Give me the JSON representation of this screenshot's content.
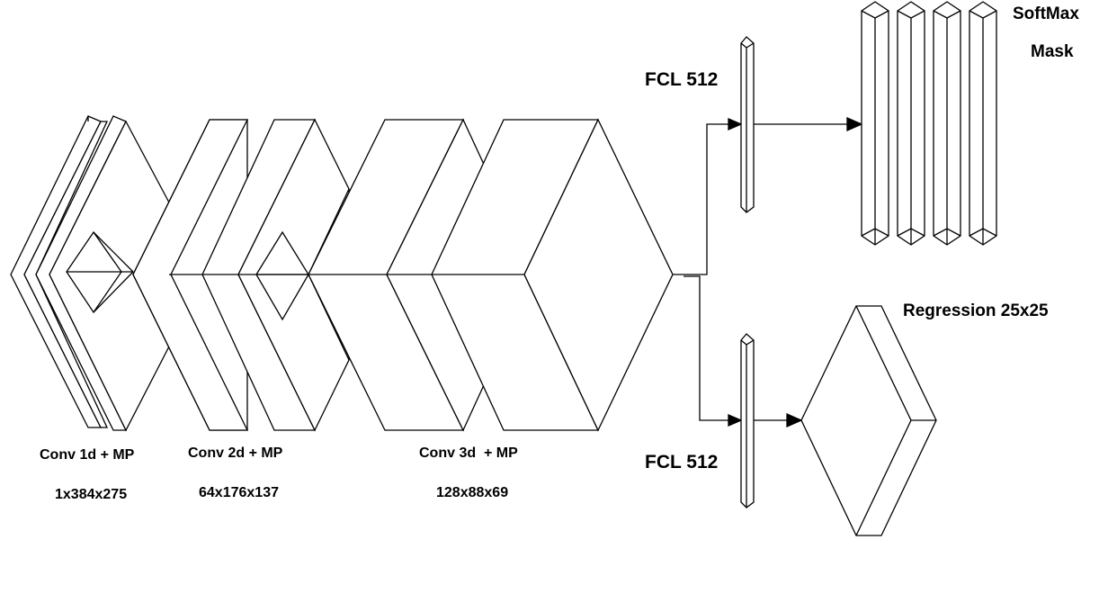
{
  "colors": {
    "stroke": "#000000",
    "fill": "#ffffff",
    "text": "#000000"
  },
  "labels": {
    "conv1_title": "Conv 1d + MP",
    "conv1_dims": "1x384x275",
    "conv2_title": "Conv 2d + MP",
    "conv2_dims": "64x176x137",
    "conv3_title": "Conv 3d  + MP",
    "conv3_dims": "128x88x69",
    "fcl_top": "FCL 512",
    "fcl_bottom": "FCL 512",
    "softmax": "SoftMax",
    "mask": "Mask",
    "regression": "Regression 25x25"
  }
}
